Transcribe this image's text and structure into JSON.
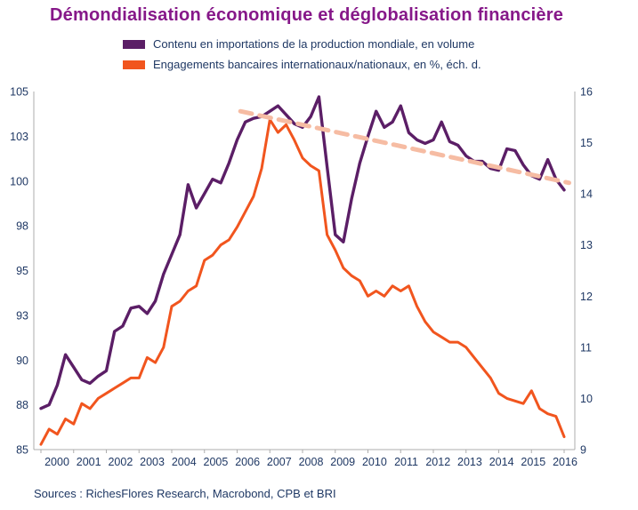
{
  "title": "Démondialisation économique et déglobalisation financière",
  "legend": [
    {
      "label": "Contenu en importations de la production mondiale, en volume",
      "color": "#5B1E66"
    },
    {
      "label": "Engagements bancaires internationaux/nationaux, en %, éch. d.",
      "color": "#F1551E"
    }
  ],
  "source": "Sources : RichesFlores Research, Macrobond, CPB et BRI",
  "colors": {
    "title": "#861889",
    "text": "#1F3864",
    "axis": "#ADADAD",
    "background": "#FFFFFF",
    "imports_line": "#5B1E66",
    "banking_line": "#F1551E",
    "trend_line": "#F6BCA3"
  },
  "chart_data": {
    "type": "line",
    "title": "Démondialisation économique et déglobalisation financière",
    "x_axis": {
      "min": 2000,
      "max": 2016,
      "labels": [
        2000,
        2001,
        2002,
        2003,
        2004,
        2005,
        2006,
        2007,
        2008,
        2009,
        2010,
        2011,
        2012,
        2013,
        2014,
        2015,
        2016
      ]
    },
    "left_axis": {
      "min": 85,
      "max": 105,
      "ticks": [
        {
          "pos": 105,
          "label": "105"
        },
        {
          "pos": 102.5,
          "label": "103"
        },
        {
          "pos": 100,
          "label": "100"
        },
        {
          "pos": 97.5,
          "label": "98"
        },
        {
          "pos": 95,
          "label": "95"
        },
        {
          "pos": 92.5,
          "label": "93"
        },
        {
          "pos": 90,
          "label": "90"
        },
        {
          "pos": 87.5,
          "label": "88"
        },
        {
          "pos": 85,
          "label": "85"
        }
      ]
    },
    "right_axis": {
      "min": 9,
      "max": 16,
      "ticks": [
        {
          "pos": 16,
          "label": "16"
        },
        {
          "pos": 15,
          "label": "15"
        },
        {
          "pos": 14,
          "label": "14"
        },
        {
          "pos": 13,
          "label": "13"
        },
        {
          "pos": 12,
          "label": "12"
        },
        {
          "pos": 11,
          "label": "11"
        },
        {
          "pos": 10,
          "label": "10"
        },
        {
          "pos": 9,
          "label": "9"
        }
      ]
    },
    "series": [
      {
        "id": "imports",
        "name": "Contenu en importations de la production mondiale, en volume",
        "axis": "left",
        "color": "#5B1E66",
        "width": 3.4,
        "x_start": 2000,
        "x_step": 0.25,
        "values": [
          87.3,
          87.5,
          88.6,
          90.3,
          89.6,
          88.9,
          88.7,
          89.1,
          89.4,
          91.6,
          91.9,
          92.9,
          93.0,
          92.6,
          93.3,
          94.8,
          95.9,
          97.0,
          99.8,
          98.5,
          99.3,
          100.1,
          99.9,
          101.0,
          102.3,
          103.3,
          103.5,
          103.6,
          103.9,
          104.2,
          103.7,
          103.2,
          103.0,
          103.6,
          104.7,
          100.8,
          97.0,
          96.6,
          99.0,
          101.0,
          102.5,
          103.9,
          103.0,
          103.3,
          104.2,
          102.7,
          102.3,
          102.1,
          102.3,
          103.3,
          102.2,
          102.0,
          101.4,
          101.1,
          101.1,
          100.7,
          100.6,
          101.8,
          101.7,
          100.9,
          100.3,
          100.1,
          101.2,
          100.1,
          99.5
        ]
      },
      {
        "id": "banking",
        "name": "Engagements bancaires internationaux/nationaux, en %, éch. d.",
        "axis": "right",
        "color": "#F1551E",
        "width": 3,
        "x_start": 2000,
        "x_step": 0.25,
        "values": [
          9.1,
          9.4,
          9.3,
          9.6,
          9.5,
          9.9,
          9.8,
          10.0,
          10.1,
          10.2,
          10.3,
          10.4,
          10.4,
          10.8,
          10.7,
          11.0,
          11.8,
          11.9,
          12.1,
          12.2,
          12.7,
          12.8,
          13.0,
          13.1,
          13.35,
          13.65,
          13.95,
          14.5,
          15.45,
          15.2,
          15.35,
          15.05,
          14.7,
          14.55,
          14.45,
          13.2,
          12.9,
          12.55,
          12.4,
          12.3,
          12.0,
          12.1,
          12.0,
          12.2,
          12.1,
          12.2,
          11.8,
          11.5,
          11.3,
          11.2,
          11.1,
          11.1,
          11.0,
          10.8,
          10.6,
          10.4,
          10.1,
          10.0,
          9.95,
          9.9,
          10.15,
          9.8,
          9.7,
          9.65,
          9.25
        ]
      },
      {
        "id": "trend",
        "axis": "left",
        "color": "#F6BCA3",
        "width": 5,
        "dash": "13 9",
        "x": [
          2006.1,
          2016.15
        ],
        "values": [
          103.9,
          99.9
        ]
      }
    ]
  }
}
